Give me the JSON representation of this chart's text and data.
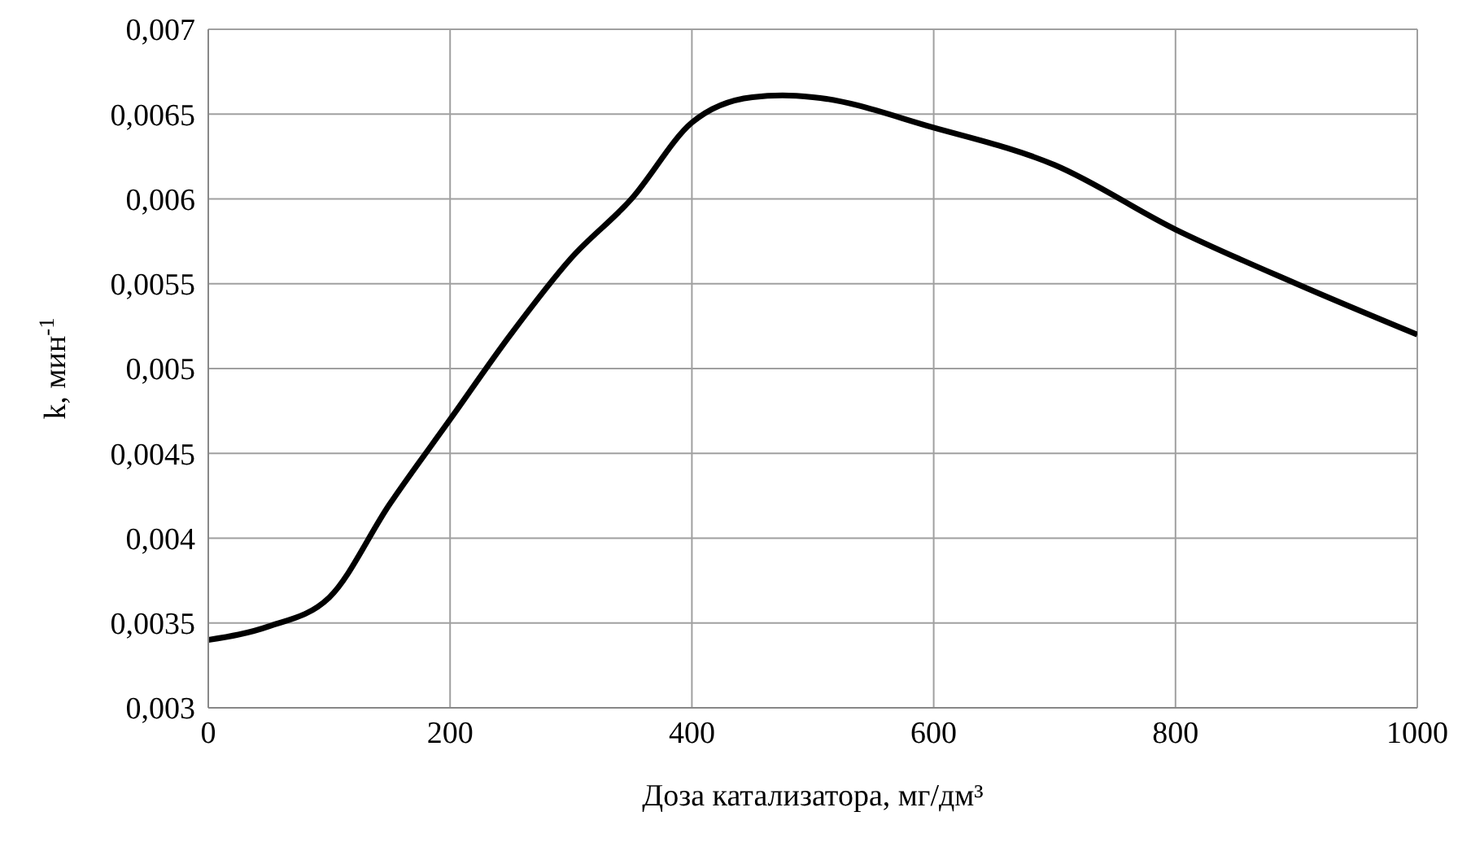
{
  "chart_data": {
    "type": "line",
    "xlabel": "Доза катализатора, мг/дм³",
    "ylabel": "k, мин$^{-1}$",
    "x": [
      0,
      50,
      100,
      150,
      200,
      250,
      300,
      350,
      400,
      450,
      475,
      500,
      600,
      700,
      800,
      900,
      1000
    ],
    "series": [
      {
        "color": "#000000",
        "values": [
          0.0034,
          0.00348,
          0.00365,
          0.0042,
          0.0047,
          0.0052,
          0.00565,
          0.006,
          0.00645,
          0.0066,
          0.00661,
          0.0066,
          0.00642,
          0.0062,
          0.00582,
          0.0055,
          0.0052
        ]
      }
    ],
    "xlim": [
      0,
      1000
    ],
    "xticks": [
      0,
      200,
      400,
      600,
      800,
      1000
    ],
    "ylim": [
      0.003,
      0.007
    ],
    "yticks": [
      {
        "value": 0.003,
        "label": "0,003"
      },
      {
        "value": 0.0035,
        "label": "0,0035"
      },
      {
        "value": 0.004,
        "label": "0,004"
      },
      {
        "value": 0.0045,
        "label": "0,0045"
      },
      {
        "value": 0.005,
        "label": "0,005"
      },
      {
        "value": 0.0055,
        "label": "0,0055"
      },
      {
        "value": 0.006,
        "label": "0,006"
      },
      {
        "value": 0.0065,
        "label": "0,0065"
      },
      {
        "value": 0.007,
        "label": "0,007"
      }
    ],
    "grid": true,
    "legend": false,
    "marker": "none",
    "line_style": "solid"
  }
}
